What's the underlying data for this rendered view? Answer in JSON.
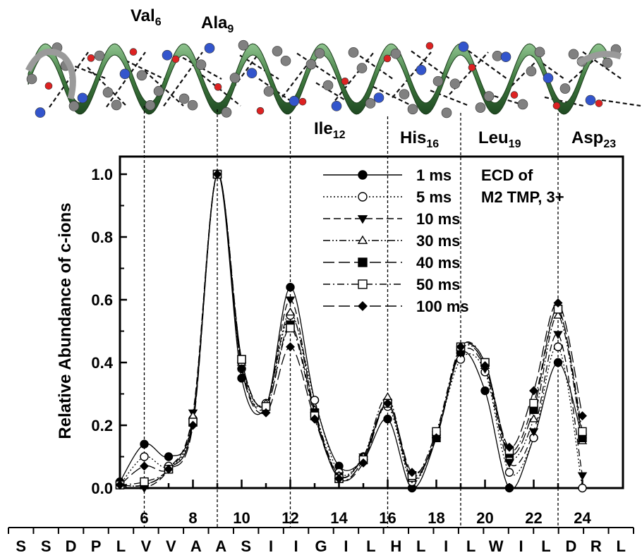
{
  "chart_data": {
    "type": "line",
    "ylabel": "Relative Abundance of c-ions",
    "xlim": [
      5,
      24.5
    ],
    "ylim": [
      0,
      1.0
    ],
    "x_ticks": [
      6,
      8,
      10,
      12,
      14,
      16,
      18,
      20,
      22,
      24
    ],
    "y_ticks": [
      "0.0",
      "0.2",
      "0.4",
      "0.6",
      "0.8",
      "1.0"
    ],
    "grid": false,
    "legend_position": "top-right",
    "annotation": "ECD of M2 TMP, 3+",
    "residue_labels": [
      {
        "name": "Val",
        "sub": "6",
        "x": 6
      },
      {
        "name": "Ala",
        "sub": "9",
        "x": 9
      },
      {
        "name": "Ile",
        "sub": "12",
        "x": 12
      },
      {
        "name": "His",
        "sub": "16",
        "x": 16
      },
      {
        "name": "Leu",
        "sub": "19",
        "x": 19
      },
      {
        "name": "Asp",
        "sub": "23",
        "x": 23
      }
    ],
    "sequence": [
      "S",
      "S",
      "D",
      "P",
      "L",
      "V",
      "V",
      "A",
      "A",
      "S",
      "I",
      "I",
      "G",
      "I",
      "L",
      "H",
      "L",
      "I",
      "L",
      "W",
      "I",
      "L",
      "D",
      "R",
      "L"
    ],
    "x": [
      5,
      6,
      7,
      8,
      9,
      10,
      11,
      12,
      13,
      14,
      15,
      16,
      17,
      18,
      19,
      20,
      21,
      22,
      23,
      24
    ],
    "series": [
      {
        "name": "1 ms",
        "marker": "circle-filled",
        "dash": "solid",
        "values": [
          0.02,
          0.14,
          0.1,
          0.22,
          1.0,
          0.35,
          0.26,
          0.64,
          0.28,
          0.07,
          0.09,
          0.22,
          0.0,
          0.16,
          0.43,
          0.31,
          0.0,
          0.16,
          0.4,
          0.16
        ]
      },
      {
        "name": "5 ms",
        "marker": "circle-open",
        "dash": "dotted",
        "values": [
          0.01,
          0.1,
          0.07,
          0.22,
          1.0,
          0.38,
          0.27,
          0.55,
          0.28,
          0.05,
          0.1,
          0.26,
          0.02,
          0.17,
          0.41,
          0.37,
          0.05,
          0.16,
          0.45,
          0.0
        ]
      },
      {
        "name": "10 ms",
        "marker": "triangle-down-filled",
        "dash": "dashed",
        "values": [
          0.01,
          0.0,
          0.06,
          0.24,
          1.0,
          0.39,
          0.26,
          0.6,
          0.24,
          0.04,
          0.1,
          0.27,
          0.03,
          0.17,
          0.43,
          0.38,
          0.08,
          0.18,
          0.49,
          0.04
        ]
      },
      {
        "name": "30 ms",
        "marker": "triangle-up-open",
        "dash": "dashdotdot",
        "values": [
          0.01,
          0.01,
          0.06,
          0.23,
          1.0,
          0.4,
          0.27,
          0.56,
          0.25,
          0.04,
          0.1,
          0.29,
          0.03,
          0.17,
          0.44,
          0.39,
          0.1,
          0.22,
          0.55,
          0.15
        ]
      },
      {
        "name": "40 ms",
        "marker": "square-filled",
        "dash": "longdash",
        "values": [
          0.01,
          0.01,
          0.06,
          0.21,
          1.0,
          0.41,
          0.26,
          0.52,
          0.24,
          0.03,
          0.09,
          0.27,
          0.04,
          0.16,
          0.44,
          0.4,
          0.11,
          0.25,
          0.57,
          0.16
        ]
      },
      {
        "name": "50 ms",
        "marker": "square-open",
        "dash": "dashdot",
        "values": [
          0.01,
          0.02,
          0.06,
          0.21,
          1.0,
          0.41,
          0.26,
          0.51,
          0.23,
          0.03,
          0.09,
          0.27,
          0.04,
          0.18,
          0.45,
          0.4,
          0.12,
          0.27,
          0.57,
          0.18
        ]
      },
      {
        "name": "100 ms",
        "marker": "diamond-filled",
        "dash": "longdash",
        "values": [
          0.01,
          0.07,
          0.06,
          0.2,
          1.0,
          0.38,
          0.24,
          0.45,
          0.22,
          0.03,
          0.08,
          0.27,
          0.05,
          0.16,
          0.45,
          0.39,
          0.13,
          0.31,
          0.59,
          0.23
        ]
      }
    ]
  }
}
